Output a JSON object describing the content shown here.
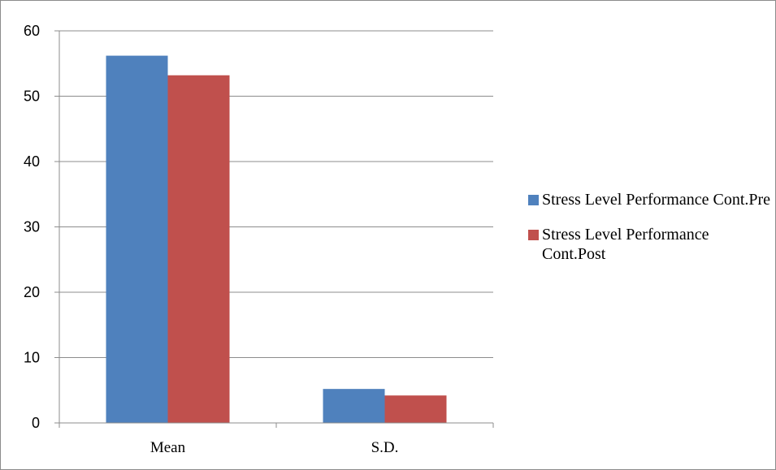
{
  "chart_data": {
    "type": "bar",
    "categories": [
      "Mean",
      "S.D."
    ],
    "series": [
      {
        "name": "Stress Level Performance Cont.Pre",
        "values": [
          56.2,
          5.2
        ],
        "color": "#4f81bd"
      },
      {
        "name": "Stress Level Performance Cont.Post",
        "values": [
          53.2,
          4.2
        ],
        "color": "#c0504d"
      }
    ],
    "ylim": [
      0,
      60
    ],
    "yticks": [
      0,
      10,
      20,
      30,
      40,
      50,
      60
    ],
    "grid": true,
    "legend_position": "right",
    "title": "",
    "xlabel": "",
    "ylabel": ""
  }
}
